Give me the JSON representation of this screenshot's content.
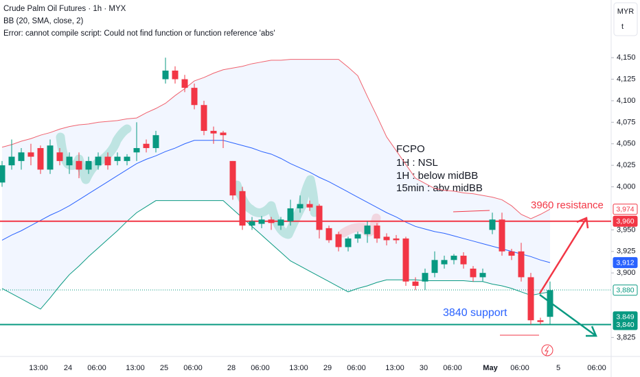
{
  "chart_data": {
    "type": "candlestick",
    "title": "Crude Palm Oil Futures · 1h · MYX",
    "indicator": "BB (20, SMA, close, 2)",
    "error": "Error: cannot compile script: Could not find function or function reference 'abs'",
    "currency": "MYR",
    "currency_sub": "t",
    "xlabels": [
      "13:00",
      "24",
      "06:00",
      "13:00",
      "25",
      "06:00",
      "28",
      "06:00",
      "13:00",
      "29",
      "06:00",
      "13:00",
      "30",
      "06:00",
      "May",
      "06:00",
      "5",
      "06:00"
    ],
    "open": [
      4005,
      4025,
      4030,
      4040,
      4045,
      4020,
      4040,
      4025,
      4030,
      4020,
      4025,
      4035,
      4030,
      4030,
      4040,
      4050,
      4045,
      4125,
      4135,
      4125,
      4115,
      4095,
      4065,
      4063,
      4030,
      3995,
      3955,
      3957,
      3962,
      3955,
      3960,
      3975,
      3980,
      3978,
      3952,
      3945,
      3930,
      3940,
      3945,
      3955,
      3942,
      3940,
      3940,
      3890,
      3890,
      3900,
      3910,
      3915,
      3920,
      3905,
      3895,
      3950,
      3962,
      3925,
      3925,
      3895,
      3845,
      3849
    ],
    "high": [
      4030,
      4055,
      4045,
      4050,
      4048,
      4055,
      4045,
      4040,
      4040,
      4035,
      4040,
      4040,
      4040,
      4038,
      4075,
      4055,
      4065,
      4150,
      4140,
      4130,
      4120,
      4100,
      4070,
      4065,
      4030,
      4000,
      3965,
      3966,
      3965,
      3965,
      3985,
      3990,
      3984,
      3980,
      3955,
      3948,
      3942,
      3948,
      3960,
      3958,
      3946,
      3944,
      3942,
      3895,
      3905,
      3925,
      3920,
      3922,
      3924,
      3908,
      3905,
      3970,
      3970,
      3928,
      3935,
      3900,
      3848,
      3890
    ],
    "low": [
      4000,
      4020,
      4020,
      4025,
      4015,
      4015,
      4025,
      4015,
      4010,
      4015,
      4020,
      4020,
      4025,
      4025,
      4030,
      4040,
      4040,
      4120,
      4120,
      4110,
      4090,
      4060,
      4050,
      4045,
      3985,
      3950,
      3950,
      3952,
      3950,
      3950,
      3955,
      3970,
      3972,
      3940,
      3935,
      3925,
      3925,
      3935,
      3935,
      3935,
      3932,
      3934,
      3885,
      3880,
      3880,
      3895,
      3905,
      3910,
      3905,
      3890,
      3890,
      3945,
      3920,
      3915,
      3890,
      3840,
      3840,
      3840
    ],
    "close": [
      4025,
      4035,
      4040,
      4035,
      4020,
      4048,
      4030,
      4035,
      4020,
      4030,
      4035,
      4025,
      4035,
      4035,
      4045,
      4045,
      4060,
      4135,
      4125,
      4115,
      4095,
      4065,
      4062,
      4060,
      3990,
      3955,
      3960,
      3962,
      3958,
      3962,
      3975,
      3980,
      3976,
      3950,
      3938,
      3930,
      3940,
      3945,
      3955,
      3940,
      3938,
      3938,
      3890,
      3885,
      3900,
      3915,
      3915,
      3920,
      3910,
      3895,
      3900,
      3962,
      3925,
      3920,
      3895,
      3845,
      3843,
      3880
    ],
    "bb_upper": [
      4046,
      4049,
      4053,
      4056,
      4060,
      4063,
      4067,
      4070,
      4072,
      4073,
      4075,
      4076,
      4077,
      4079,
      4080,
      4086,
      4091,
      4097,
      4106,
      4114,
      4123,
      4127,
      4132,
      4136,
      4138,
      4140,
      4143,
      4145,
      4147,
      4147,
      4148,
      4148,
      4148,
      4148,
      4148,
      4148,
      4139,
      4129,
      4105,
      4082,
      4058,
      4042,
      4026,
      4010,
      4004,
      3998,
      3996,
      3995,
      3993,
      3992,
      3990,
      3988,
      3985,
      3978,
      3968,
      3963,
      3968,
      3974
    ],
    "bb_mid": [
      3938,
      3944,
      3949,
      3955,
      3961,
      3967,
      3972,
      3978,
      3985,
      3992,
      3999,
      4006,
      4013,
      4020,
      4027,
      4032,
      4036,
      4041,
      4045,
      4050,
      4054,
      4054,
      4054,
      4054,
      4051,
      4048,
      4045,
      4041,
      4038,
      4033,
      4027,
      4022,
      4017,
      4011,
      4006,
      4000,
      3994,
      3988,
      3982,
      3976,
      3970,
      3965,
      3959,
      3954,
      3951,
      3948,
      3946,
      3943,
      3940,
      3937,
      3934,
      3931,
      3928,
      3925,
      3922,
      3919,
      3915,
      3912
    ],
    "bb_lower": [
      3882,
      3876,
      3870,
      3864,
      3858,
      3871,
      3885,
      3898,
      3908,
      3919,
      3929,
      3939,
      3949,
      3960,
      3970,
      3977,
      3984,
      3984,
      3984,
      3984,
      3984,
      3984,
      3984,
      3984,
      3974,
      3964,
      3954,
      3944,
      3934,
      3924,
      3914,
      3908,
      3902,
      3896,
      3890,
      3884,
      3878,
      3882,
      3885,
      3889,
      3892,
      3892,
      3892,
      3892,
      3891,
      3891,
      3891,
      3891,
      3891,
      3890,
      3890,
      3887,
      3885,
      3882,
      3878,
      3874,
      3876,
      3878
    ],
    "up_color": "#089981",
    "down_color": "#f23645",
    "ylim": [
      3803,
      4217
    ],
    "yticks": [
      {
        "value": 4150,
        "label": "4,150"
      },
      {
        "value": 4125,
        "label": "4,125"
      },
      {
        "value": 4100,
        "label": "4,100"
      },
      {
        "value": 4075,
        "label": "4,075"
      },
      {
        "value": 4050,
        "label": "4,050"
      },
      {
        "value": 4025,
        "label": "4,025"
      },
      {
        "value": 4000,
        "label": "4,000"
      },
      {
        "value": 3950,
        "label": "3,950"
      },
      {
        "value": 3925,
        "label": "3,925"
      },
      {
        "value": 3900,
        "label": "3,900"
      },
      {
        "value": 3825,
        "label": "3,825"
      }
    ],
    "price_labels": [
      {
        "value": 3974,
        "label": "3,974",
        "color": "#f23645",
        "filled": false
      },
      {
        "value": 3960,
        "label": "3,960",
        "color": "#f23645",
        "filled": true
      },
      {
        "value": 3912,
        "label": "3,912",
        "color": "#2962ff",
        "filled": true
      },
      {
        "value": 3880,
        "label": "3,880",
        "color": "#089981",
        "filled": false
      },
      {
        "value": 3849,
        "label": "3,849",
        "color": "#089981",
        "filled": true
      },
      {
        "value": 3840,
        "label": "3,840",
        "color": "#089981",
        "filled": true
      }
    ],
    "hlines": [
      {
        "value": 3960,
        "color": "#f23645"
      },
      {
        "value": 3840,
        "color": "#089981"
      }
    ],
    "annotations": [
      "FCPO",
      "1H : NSL",
      "1H : below midBB",
      "15min : abv midBB",
      "3960 resistance",
      "3840 support"
    ]
  }
}
